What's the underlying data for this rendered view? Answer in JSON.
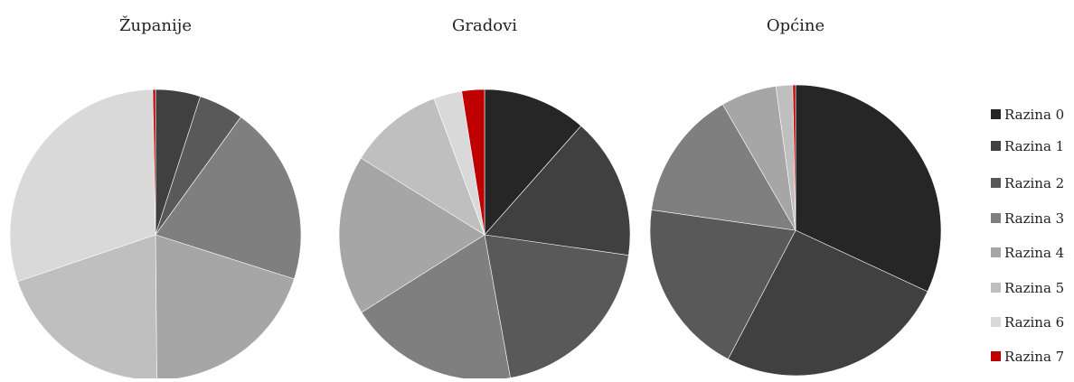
{
  "chart_data": {
    "type": "pie",
    "legend_position": "right",
    "legend": [
      {
        "label": "Razina 0",
        "color": "#262626"
      },
      {
        "label": "Razina 1",
        "color": "#404040"
      },
      {
        "label": "Razina 2",
        "color": "#595959"
      },
      {
        "label": "Razina 3",
        "color": "#7f7f7f"
      },
      {
        "label": "Razina 4",
        "color": "#a6a6a6"
      },
      {
        "label": "Razina 5",
        "color": "#bfbfbf"
      },
      {
        "label": "Razina 6",
        "color": "#d9d9d9"
      },
      {
        "label": "Razina 7",
        "color": "#c00000"
      }
    ],
    "pies": [
      {
        "title": "Županije",
        "values": [
          0,
          5,
          5,
          20,
          20,
          20,
          30,
          0.3
        ]
      },
      {
        "title": "Gradovi",
        "values": [
          11,
          15,
          19,
          18,
          17,
          10,
          3,
          2.4
        ]
      },
      {
        "title": "Općine",
        "values": [
          31,
          25,
          19,
          14,
          6,
          1.8,
          0,
          0.3
        ]
      }
    ]
  }
}
